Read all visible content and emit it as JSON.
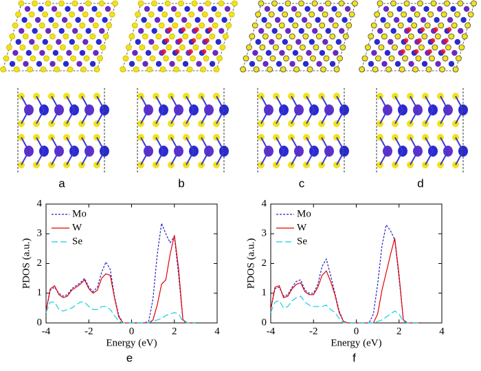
{
  "panel_labels": [
    "a",
    "b",
    "c",
    "d"
  ],
  "chart_data": [
    {
      "type": "line",
      "panel_label": "e",
      "xlabel": "Energy (eV)",
      "ylabel": "PDOS (a.u.)",
      "x": [
        -4.0,
        -3.8,
        -3.6,
        -3.4,
        -3.2,
        -3.0,
        -2.8,
        -2.6,
        -2.4,
        -2.2,
        -2.0,
        -1.8,
        -1.6,
        -1.4,
        -1.2,
        -1.0,
        -0.8,
        -0.6,
        -0.4,
        -0.2,
        0,
        0.2,
        0.4,
        0.6,
        0.8,
        1.0,
        1.2,
        1.4,
        1.6,
        1.8,
        2.0,
        2.2,
        2.4,
        2.6,
        2.8,
        3.0
      ],
      "series": [
        {
          "name": "Mo",
          "color": "#2020c8",
          "dash": "dotted",
          "values": [
            0.4,
            1.1,
            1.2,
            1.0,
            0.9,
            0.95,
            1.15,
            1.25,
            1.35,
            1.5,
            1.2,
            1.05,
            1.2,
            1.7,
            2.05,
            1.8,
            0.9,
            0.25,
            0,
            0,
            0,
            0,
            0,
            0,
            0.05,
            0.8,
            2.3,
            3.35,
            3.0,
            2.7,
            2.9,
            1.6,
            0.1,
            0,
            0,
            0
          ]
        },
        {
          "name": "W",
          "color": "#e00000",
          "dash": "solid",
          "values": [
            0.4,
            1.15,
            1.25,
            0.95,
            0.85,
            0.9,
            1.1,
            1.2,
            1.3,
            1.45,
            1.15,
            1.0,
            1.1,
            1.5,
            1.65,
            1.6,
            0.85,
            0.2,
            0,
            0,
            0,
            0,
            0,
            0,
            0,
            0.1,
            0.6,
            1.3,
            1.45,
            2.3,
            2.95,
            1.8,
            0.1,
            0,
            0,
            0
          ]
        },
        {
          "name": "Se",
          "color": "#10d0e0",
          "dash": "dashed",
          "values": [
            0.35,
            0.7,
            0.7,
            0.45,
            0.4,
            0.45,
            0.5,
            0.6,
            0.7,
            0.7,
            0.55,
            0.45,
            0.45,
            0.55,
            0.55,
            0.45,
            0.25,
            0.05,
            0,
            0,
            0,
            0,
            0,
            0,
            0,
            0.05,
            0.1,
            0.15,
            0.25,
            0.3,
            0.35,
            0.3,
            0.05,
            0,
            0,
            0
          ]
        }
      ],
      "xlim": [
        -4,
        4
      ],
      "xticks": [
        -4,
        -2,
        0,
        2,
        4
      ],
      "ylim": [
        0,
        4
      ],
      "yticks": [
        0,
        1,
        2,
        3,
        4
      ],
      "legend": "upper-left"
    },
    {
      "type": "line",
      "panel_label": "f",
      "xlabel": "Energy (eV)",
      "ylabel": "PDOS (a.u.)",
      "x": [
        -4.0,
        -3.8,
        -3.6,
        -3.4,
        -3.2,
        -3.0,
        -2.8,
        -2.6,
        -2.4,
        -2.2,
        -2.0,
        -1.8,
        -1.6,
        -1.4,
        -1.2,
        -1.0,
        -0.8,
        -0.6,
        -0.4,
        -0.2,
        0,
        0.2,
        0.4,
        0.6,
        0.8,
        1.0,
        1.2,
        1.4,
        1.6,
        1.8,
        2.0,
        2.2,
        2.4,
        2.6,
        2.8,
        3.0
      ],
      "series": [
        {
          "name": "Mo",
          "color": "#2020c8",
          "dash": "dotted",
          "values": [
            0.45,
            1.15,
            1.2,
            0.9,
            0.95,
            1.2,
            1.4,
            1.45,
            1.1,
            1.0,
            1.0,
            1.3,
            1.9,
            2.15,
            1.6,
            1.0,
            0.4,
            0.05,
            0,
            0,
            0,
            0,
            0,
            0,
            0.3,
            1.3,
            2.6,
            3.3,
            3.1,
            2.8,
            1.5,
            0.1,
            0,
            0,
            0,
            0
          ]
        },
        {
          "name": "W",
          "color": "#e00000",
          "dash": "solid",
          "values": [
            0.45,
            1.2,
            1.25,
            0.85,
            0.9,
            1.15,
            1.3,
            1.35,
            1.05,
            0.95,
            0.95,
            1.2,
            1.6,
            1.75,
            1.4,
            0.95,
            0.35,
            0.05,
            0,
            0,
            0,
            0,
            0,
            0,
            0,
            0.3,
            1.1,
            1.7,
            2.3,
            2.85,
            1.6,
            0.1,
            0,
            0,
            0,
            0
          ]
        },
        {
          "name": "Se",
          "color": "#10d0e0",
          "dash": "dashed",
          "values": [
            0.35,
            0.7,
            0.75,
            0.5,
            0.55,
            0.75,
            0.85,
            0.9,
            0.7,
            0.6,
            0.55,
            0.55,
            0.55,
            0.6,
            0.45,
            0.35,
            0.15,
            0,
            0,
            0,
            0,
            0,
            0,
            0,
            0,
            0.05,
            0.1,
            0.2,
            0.3,
            0.4,
            0.3,
            0.05,
            0,
            0,
            0,
            0
          ]
        }
      ],
      "xlim": [
        -4,
        4
      ],
      "xticks": [
        -4,
        -2,
        0,
        2,
        4
      ],
      "ylim": [
        0,
        4
      ],
      "yticks": [
        0,
        1,
        2,
        3,
        4
      ],
      "legend": "upper-left"
    }
  ]
}
